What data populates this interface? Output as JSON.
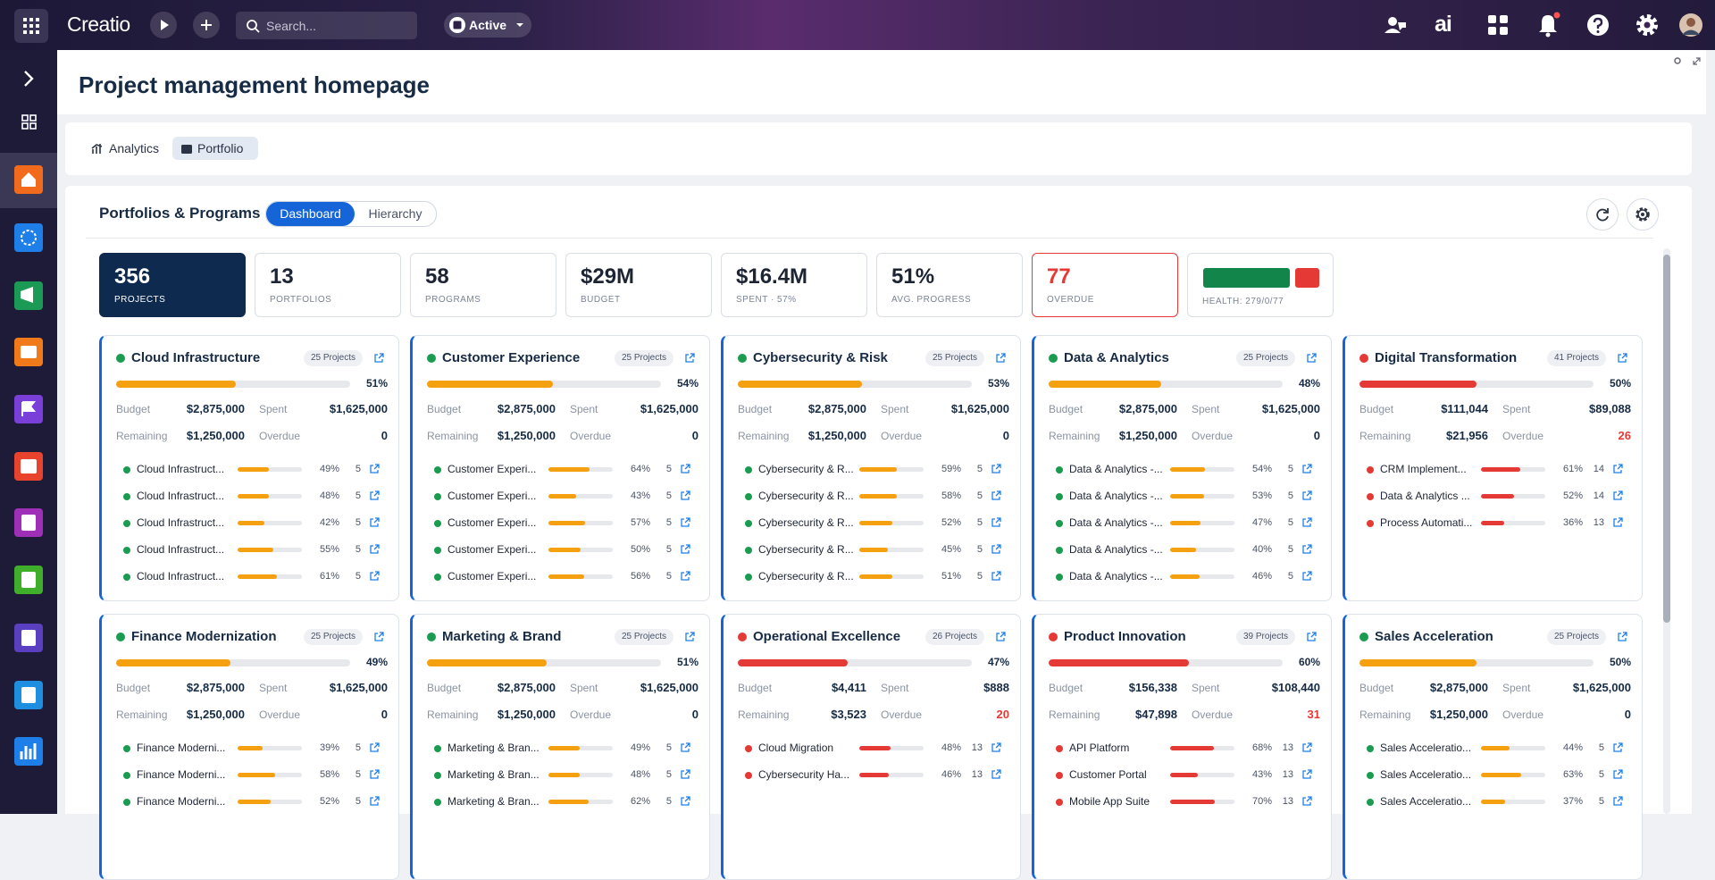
{
  "topbar": {
    "logo": "Creatio",
    "search_placeholder": "Search...",
    "status": "Active",
    "ai": "ai"
  },
  "header": {
    "title": "Project management homepage"
  },
  "tabs": [
    "Analytics",
    "Portfolio"
  ],
  "section": {
    "title": "Portfolios & Programs",
    "views": [
      "Dashboard",
      "Hierarchy"
    ]
  },
  "kpis": [
    {
      "value": 356,
      "label": "PROJECTS",
      "background": "#0e2a4f"
    },
    {
      "value": 13,
      "label": "PORTFOLIOS"
    },
    {
      "value": 58,
      "label": "PROGRAMS"
    },
    {
      "value": "$29M",
      "label": "BUDGET"
    },
    {
      "value": "$16.4M",
      "label": "SPENT · 57%"
    },
    {
      "value": "51%",
      "label": "AVG. PROGRESS"
    },
    {
      "value": 77,
      "label": "OVERDUE",
      "color": "#e53935"
    }
  ],
  "health": {
    "label": "HEALTH: 279/0/77",
    "segments": [
      {
        "value": 279,
        "color": "#12864a"
      },
      {
        "value": 0,
        "color": "#f59e0b"
      },
      {
        "value": 77,
        "color": "#e53935"
      }
    ]
  },
  "labels": {
    "budget": "Budget",
    "spent": "Spent",
    "remaining": "Remaining",
    "overdue": "Overdue"
  },
  "cards": [
    {
      "title": "Cloud Infrastructure",
      "badge": "25 Projects",
      "dot_color": "#1a9b50",
      "bar_color": "#f5a00e",
      "progress": {
        "value": 51,
        "label": "51%"
      },
      "budget": "$2,875,000",
      "spent": "$1,625,000",
      "remaining": "$1,250,000",
      "overdue": 0,
      "items": [
        {
          "name": "Cloud Infrastruct...",
          "progress": {
            "value": 49,
            "label": "49%"
          },
          "count": 5
        },
        {
          "name": "Cloud Infrastruct...",
          "progress": {
            "value": 48,
            "label": "48%"
          },
          "count": 5
        },
        {
          "name": "Cloud Infrastruct...",
          "progress": {
            "value": 42,
            "label": "42%"
          },
          "count": 5
        },
        {
          "name": "Cloud Infrastruct...",
          "progress": {
            "value": 55,
            "label": "55%"
          },
          "count": 5
        },
        {
          "name": "Cloud Infrastruct...",
          "progress": {
            "value": 61,
            "label": "61%"
          },
          "count": 5
        }
      ]
    },
    {
      "title": "Customer Experience",
      "badge": "25 Projects",
      "dot_color": "#1a9b50",
      "bar_color": "#f5a00e",
      "progress": {
        "value": 54,
        "label": "54%"
      },
      "budget": "$2,875,000",
      "spent": "$1,625,000",
      "remaining": "$1,250,000",
      "overdue": 0,
      "items": [
        {
          "name": "Customer Experi...",
          "progress": {
            "value": 64,
            "label": "64%"
          },
          "count": 5
        },
        {
          "name": "Customer Experi...",
          "progress": {
            "value": 43,
            "label": "43%"
          },
          "count": 5
        },
        {
          "name": "Customer Experi...",
          "progress": {
            "value": 57,
            "label": "57%"
          },
          "count": 5
        },
        {
          "name": "Customer Experi...",
          "progress": {
            "value": 50,
            "label": "50%"
          },
          "count": 5
        },
        {
          "name": "Customer Experi...",
          "progress": {
            "value": 56,
            "label": "56%"
          },
          "count": 5
        }
      ]
    },
    {
      "title": "Cybersecurity & Risk",
      "badge": "25 Projects",
      "dot_color": "#1a9b50",
      "bar_color": "#f5a00e",
      "progress": {
        "value": 53,
        "label": "53%"
      },
      "budget": "$2,875,000",
      "spent": "$1,625,000",
      "remaining": "$1,250,000",
      "overdue": 0,
      "items": [
        {
          "name": "Cybersecurity & R...",
          "progress": {
            "value": 59,
            "label": "59%"
          },
          "count": 5
        },
        {
          "name": "Cybersecurity & R...",
          "progress": {
            "value": 58,
            "label": "58%"
          },
          "count": 5
        },
        {
          "name": "Cybersecurity & R...",
          "progress": {
            "value": 52,
            "label": "52%"
          },
          "count": 5
        },
        {
          "name": "Cybersecurity & R...",
          "progress": {
            "value": 45,
            "label": "45%"
          },
          "count": 5
        },
        {
          "name": "Cybersecurity & R...",
          "progress": {
            "value": 51,
            "label": "51%"
          },
          "count": 5
        }
      ]
    },
    {
      "title": "Data & Analytics",
      "badge": "25 Projects",
      "dot_color": "#1a9b50",
      "bar_color": "#f5a00e",
      "progress": {
        "value": 48,
        "label": "48%"
      },
      "budget": "$2,875,000",
      "spent": "$1,625,000",
      "remaining": "$1,250,000",
      "overdue": 0,
      "items": [
        {
          "name": "Data & Analytics -...",
          "progress": {
            "value": 54,
            "label": "54%"
          },
          "count": 5
        },
        {
          "name": "Data & Analytics -...",
          "progress": {
            "value": 53,
            "label": "53%"
          },
          "count": 5
        },
        {
          "name": "Data & Analytics -...",
          "progress": {
            "value": 47,
            "label": "47%"
          },
          "count": 5
        },
        {
          "name": "Data & Analytics -...",
          "progress": {
            "value": 40,
            "label": "40%"
          },
          "count": 5
        },
        {
          "name": "Data & Analytics -...",
          "progress": {
            "value": 46,
            "label": "46%"
          },
          "count": 5
        }
      ]
    },
    {
      "title": "Digital Transformation",
      "badge": "41 Projects",
      "dot_color": "#e53935",
      "bar_color": "#e53935",
      "progress": {
        "value": 50,
        "label": "50%"
      },
      "budget": "$111,044",
      "spent": "$89,088",
      "remaining": "$21,956",
      "overdue": 26,
      "items": [
        {
          "name": "CRM Implement...",
          "progress": {
            "value": 61,
            "label": "61%"
          },
          "count": 14
        },
        {
          "name": "Data & Analytics ...",
          "progress": {
            "value": 52,
            "label": "52%"
          },
          "count": 14
        },
        {
          "name": "Process Automati...",
          "progress": {
            "value": 36,
            "label": "36%"
          },
          "count": 13
        }
      ]
    },
    {
      "title": "Finance Modernization",
      "badge": "25 Projects",
      "dot_color": "#1a9b50",
      "bar_color": "#f5a00e",
      "progress": {
        "value": 49,
        "label": "49%"
      },
      "budget": "$2,875,000",
      "spent": "$1,625,000",
      "remaining": "$1,250,000",
      "overdue": 0,
      "items": [
        {
          "name": "Finance Moderni...",
          "progress": {
            "value": 39,
            "label": "39%"
          },
          "count": 5
        },
        {
          "name": "Finance Moderni...",
          "progress": {
            "value": 58,
            "label": "58%"
          },
          "count": 5
        },
        {
          "name": "Finance Moderni...",
          "progress": {
            "value": 52,
            "label": "52%"
          },
          "count": 5
        }
      ]
    },
    {
      "title": "Marketing & Brand",
      "badge": "25 Projects",
      "dot_color": "#1a9b50",
      "bar_color": "#f5a00e",
      "progress": {
        "value": 51,
        "label": "51%"
      },
      "budget": "$2,875,000",
      "spent": "$1,625,000",
      "remaining": "$1,250,000",
      "overdue": 0,
      "items": [
        {
          "name": "Marketing & Bran...",
          "progress": {
            "value": 49,
            "label": "49%"
          },
          "count": 5
        },
        {
          "name": "Marketing & Bran...",
          "progress": {
            "value": 48,
            "label": "48%"
          },
          "count": 5
        },
        {
          "name": "Marketing & Bran...",
          "progress": {
            "value": 62,
            "label": "62%"
          },
          "count": 5
        }
      ]
    },
    {
      "title": "Operational Excellence",
      "badge": "26 Projects",
      "dot_color": "#e53935",
      "bar_color": "#e53935",
      "progress": {
        "value": 47,
        "label": "47%"
      },
      "budget": "$4,411",
      "spent": "$888",
      "remaining": "$3,523",
      "overdue": 20,
      "items": [
        {
          "name": "Cloud Migration",
          "progress": {
            "value": 48,
            "label": "48%"
          },
          "count": 13
        },
        {
          "name": "Cybersecurity Ha...",
          "progress": {
            "value": 46,
            "label": "46%"
          },
          "count": 13
        }
      ]
    },
    {
      "title": "Product Innovation",
      "badge": "39 Projects",
      "dot_color": "#e53935",
      "bar_color": "#e53935",
      "progress": {
        "value": 60,
        "label": "60%"
      },
      "budget": "$156,338",
      "spent": "$108,440",
      "remaining": "$47,898",
      "overdue": 31,
      "items": [
        {
          "name": "API Platform",
          "progress": {
            "value": 68,
            "label": "68%"
          },
          "count": 13
        },
        {
          "name": "Customer Portal",
          "progress": {
            "value": 43,
            "label": "43%"
          },
          "count": 13
        },
        {
          "name": "Mobile App Suite",
          "progress": {
            "value": 70,
            "label": "70%"
          },
          "count": 13
        }
      ]
    },
    {
      "title": "Sales Acceleration",
      "badge": "25 Projects",
      "dot_color": "#1a9b50",
      "bar_color": "#f5a00e",
      "progress": {
        "value": 50,
        "label": "50%"
      },
      "budget": "$2,875,000",
      "spent": "$1,625,000",
      "remaining": "$1,250,000",
      "overdue": 0,
      "items": [
        {
          "name": "Sales Acceleratio...",
          "progress": {
            "value": 44,
            "label": "44%"
          },
          "count": 5
        },
        {
          "name": "Sales Acceleratio...",
          "progress": {
            "value": 63,
            "label": "63%"
          },
          "count": 5
        },
        {
          "name": "Sales Acceleratio...",
          "progress": {
            "value": 37,
            "label": "37%"
          },
          "count": 5
        }
      ]
    }
  ]
}
